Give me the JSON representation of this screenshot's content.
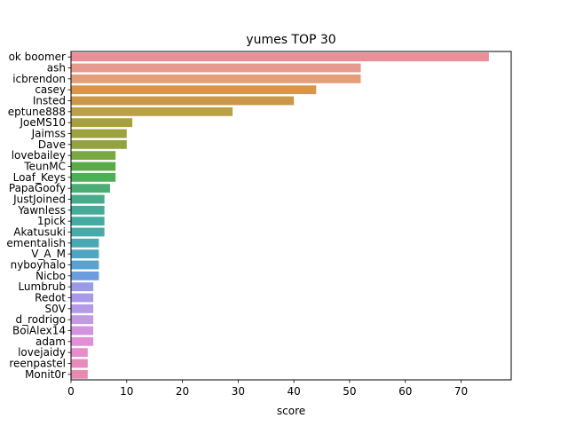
{
  "chart_data": {
    "type": "bar",
    "orientation": "horizontal",
    "title": "yumes TOP 30",
    "xlabel": "score",
    "ylabel": "",
    "xlim": [
      0,
      79
    ],
    "xticks": [
      0,
      10,
      20,
      30,
      40,
      50,
      60,
      70
    ],
    "grid": false,
    "categories": [
      "ok boomer",
      "ash",
      "icbrendon",
      "casey",
      "Insted",
      "eptune888",
      "JoeMS10",
      "Jaimss",
      "Dave",
      "lovebailey",
      "TeunMC",
      "Loaf_Keys",
      "PapaGoofy",
      "JustJoined",
      "Yawnless",
      "1pick",
      "Akatusuki",
      "ementalish",
      "V_A_M",
      "nyboyhalo",
      "Nicbo",
      "Lumbrub",
      "Redot",
      "S0V",
      "d_rodrigo",
      "BoiAlex14",
      "adam",
      "lovejaidy",
      "reenpastel",
      "Monit0r"
    ],
    "values": [
      75,
      52,
      52,
      44,
      40,
      29,
      11,
      10,
      10,
      8,
      8,
      8,
      7,
      6,
      6,
      6,
      6,
      5,
      5,
      5,
      5,
      4,
      4,
      4,
      4,
      4,
      4,
      3,
      3,
      3
    ],
    "colors": [
      "#ea8e97",
      "#e99a8e",
      "#e59e7a",
      "#d9964a",
      "#c9984a",
      "#bca046",
      "#a8a03e",
      "#9ca23e",
      "#93a33f",
      "#7aa941",
      "#5aab48",
      "#4daf57",
      "#4bad74",
      "#48ab8c",
      "#46aa98",
      "#46aaa2",
      "#46a9aa",
      "#48a8b5",
      "#4ea6c2",
      "#5aa2d2",
      "#6b9dde",
      "#9b9ae8",
      "#a89ae8",
      "#b39be8",
      "#c29ae4",
      "#d394df",
      "#e090d6",
      "#e68dc9",
      "#e78bbd",
      "#e88ab1"
    ]
  }
}
